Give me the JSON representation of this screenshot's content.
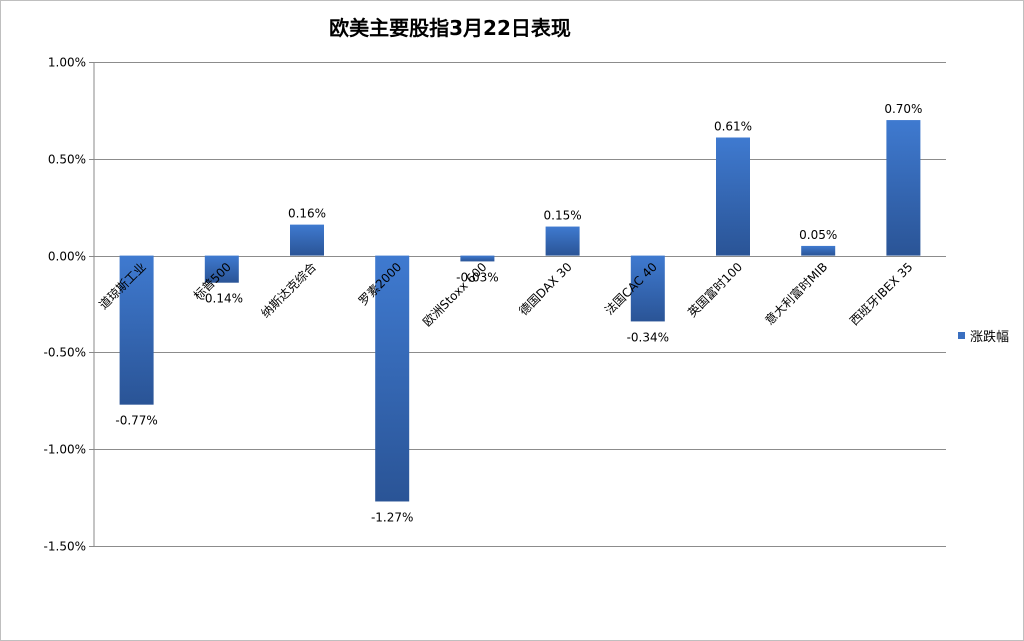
{
  "chart_data": {
    "type": "bar",
    "title": "欧美主要股指3月22日表现",
    "categories": [
      "道琼斯工业",
      "标普500",
      "纳斯达克综合",
      "罗素2000",
      "欧洲Stoxx 600",
      "德国DAX 30",
      "法国CAC 40",
      "英国富时100",
      "意大利富时MIB",
      "西班牙IBEX 35"
    ],
    "series": [
      {
        "name": "涨跌幅",
        "values": [
          -0.77,
          -0.14,
          0.16,
          -1.27,
          -0.03,
          0.15,
          -0.34,
          0.61,
          0.05,
          0.7
        ],
        "labels": [
          "-0.77%",
          "-0.14%",
          "0.16%",
          "-1.27%",
          "-0.03%",
          "0.15%",
          "-0.34%",
          "0.61%",
          "0.05%",
          "0.70%"
        ]
      }
    ],
    "ylim": [
      -1.5,
      1.0
    ],
    "yticks": [
      1.0,
      0.5,
      0.0,
      -0.5,
      -1.0,
      -1.5
    ],
    "ytick_labels": [
      "1.00%",
      "0.50%",
      "0.00%",
      "-0.50%",
      "-1.00%",
      "-1.50%"
    ],
    "xlabel": "",
    "ylabel": "",
    "grid": true,
    "legend_position": "right",
    "bar_color": "#3a6fc0",
    "bar_color_dark": "#2a5496"
  }
}
